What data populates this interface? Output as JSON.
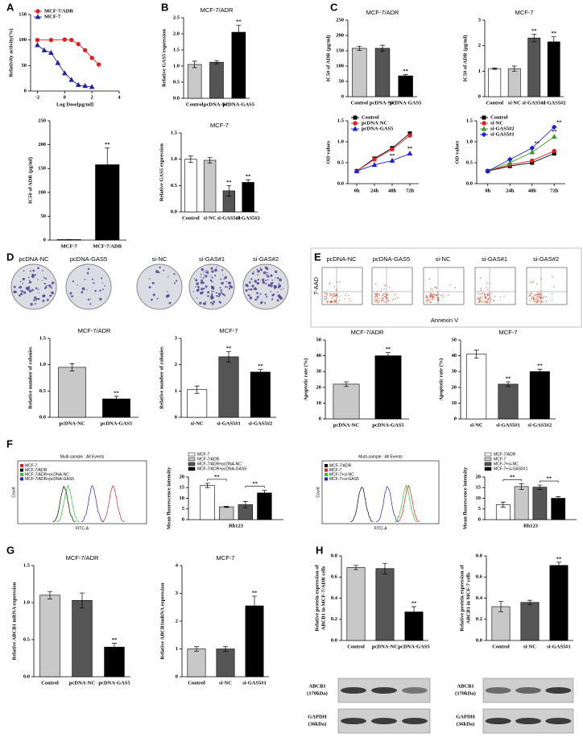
{
  "panel_labels": [
    "A",
    "B",
    "C",
    "D",
    "E",
    "F",
    "G",
    "H"
  ],
  "colony_images": {
    "labels": [
      "pcDNA-NC",
      "pcDNA-GAS5",
      "si-NC",
      "si-GAS#1",
      "si-GAS#2"
    ]
  },
  "flow_images": {
    "labels": [
      "pcDNA-NC",
      "pcDNA-GAS5",
      "si-NC",
      "si-GAS#1",
      "si-GAS#2"
    ],
    "y_label": "7-AAD",
    "x_label": "Annexin V"
  },
  "histograms": [
    {
      "title": "Multi-sample : All Events",
      "x_label": "FITC-A",
      "y_label": "Count",
      "legend": [
        {
          "name": "MCF-7",
          "color": "#e02020"
        },
        {
          "name": "MCF-7/ADR",
          "color": "#000000"
        },
        {
          "name": "MCF-7/ADR+pcDNA-NC",
          "color": "#22cc22"
        },
        {
          "name": "MCF-7/ADR+pcDNA-GAS5",
          "color": "#2020d0"
        }
      ]
    },
    {
      "title": "Multi-sample : All Events",
      "x_label": "FITC-A",
      "y_label": "Count",
      "legend": [
        {
          "name": "MCF-7/ADR",
          "color": "#000000"
        },
        {
          "name": "MCF-7",
          "color": "#e02020"
        },
        {
          "name": "MCF-7+si-NC",
          "color": "#22cc22"
        },
        {
          "name": "MCF-7+si-GAS5",
          "color": "#2020d0"
        }
      ]
    }
  ],
  "blots": [
    {
      "rows": [
        {
          "protein": "ABCB1",
          "size": "(170kDa)"
        },
        {
          "protein": "GAPDH",
          "size": "(36kDa)"
        }
      ]
    },
    {
      "rows": [
        {
          "protein": "ABCB1",
          "size": "(170kDa)"
        },
        {
          "protein": "GAPDH",
          "size": "(36kDa)"
        }
      ]
    }
  ],
  "chart_data": [
    {
      "type": "line",
      "x_label": "Log Dose[μg/ml]",
      "y_label": "Relativity activity(%)",
      "xlim": [
        -2.5,
        4
      ],
      "xticks": [
        -2,
        0,
        2,
        4
      ],
      "ylim": [
        0,
        150
      ],
      "yticks": [
        0,
        50,
        100,
        150
      ],
      "legend": "upper left",
      "series": [
        {
          "name": "MCF-7/ADR",
          "color": "#e02020",
          "marker": "circle",
          "x": [
            -2,
            -1,
            0,
            0.5,
            1,
            1.5,
            2,
            2.5
          ],
          "values": [
            100,
            100,
            101,
            100,
            92,
            80,
            65,
            52
          ]
        },
        {
          "name": "MCF-7",
          "color": "#2020a0",
          "marker": "triangle",
          "x": [
            -2,
            -1.5,
            -1,
            -0.5,
            0,
            0.5,
            1,
            1.5,
            2
          ],
          "values": [
            90,
            80,
            75,
            55,
            35,
            22,
            12,
            10,
            8
          ]
        }
      ]
    },
    {
      "type": "bar",
      "y_label": "IC50 of ADR (μg/ml)",
      "categories": [
        "MCF-7",
        "MCF-7/ADR"
      ],
      "values": [
        1,
        158
      ],
      "errors": [
        0.3,
        35
      ],
      "significance": [
        null,
        "**"
      ],
      "colors": [
        "#ffffff",
        "#000000"
      ],
      "ylim": [
        0,
        250
      ],
      "yticks": [
        0,
        50,
        100,
        150,
        200,
        250
      ]
    },
    {
      "type": "bar",
      "title": "MCF-7/ADR",
      "y_label": "Relative GAS5 expression",
      "categories": [
        "Control",
        "pcDNA-NC",
        "pcDNA-GAS5"
      ],
      "values": [
        1.05,
        1.12,
        2.05
      ],
      "errors": [
        0.1,
        0.05,
        0.22
      ],
      "significance": [
        null,
        null,
        "**"
      ],
      "colors": [
        "#c8c8c8",
        "#555555",
        "#000000"
      ],
      "ylim": [
        0,
        2.5
      ],
      "yticks": [
        {
          "value": 0,
          "label": "0.0"
        },
        0.5,
        {
          "value": 1,
          "label": "1.0"
        },
        1.5,
        {
          "value": 2,
          "label": "2.0"
        },
        2.5
      ]
    },
    {
      "type": "bar",
      "title": "MCF-7",
      "y_label": "Relative GAS5 expression",
      "categories": [
        "Control",
        "si-NC",
        "si-GAS5#1",
        "si-GAS5#2"
      ],
      "values": [
        1.0,
        0.98,
        0.4,
        0.56
      ],
      "errors": [
        0.06,
        0.05,
        0.1,
        0.05
      ],
      "significance": [
        null,
        null,
        "**",
        "**"
      ],
      "colors": [
        "#ffffff",
        "#c8c8c8",
        "#555555",
        "#000000"
      ],
      "ylim": [
        0,
        1.5
      ],
      "yticks": [
        {
          "value": 0,
          "label": "0.0"
        },
        0.5,
        {
          "value": 1,
          "label": "1.0"
        },
        1.5
      ]
    },
    {
      "type": "bar",
      "title": "MCF-7/ADR",
      "y_label": "IC50 of ADR (μg/ml)",
      "categories": [
        "Control",
        "pcDNA-NC",
        "pcDNA-GAS5"
      ],
      "values": [
        158,
        158,
        68
      ],
      "errors": [
        7,
        10,
        4
      ],
      "significance": [
        null,
        null,
        "**"
      ],
      "colors": [
        "#c8c8c8",
        "#555555",
        "#000000"
      ],
      "ylim": [
        0,
        250
      ],
      "yticks": [
        0,
        50,
        100,
        150,
        200,
        250
      ]
    },
    {
      "type": "bar",
      "title": "MCF-7",
      "y_label": "IC50 of ADR (μg/ml)",
      "categories": [
        "Control",
        "si-NC",
        "si-GAS5#1",
        "si-GAS5#2"
      ],
      "values": [
        1.1,
        1.1,
        2.3,
        2.15
      ],
      "errors": [
        0.03,
        0.1,
        0.15,
        0.2
      ],
      "significance": [
        null,
        null,
        "**",
        "**"
      ],
      "colors": [
        "#ffffff",
        "#c8c8c8",
        "#555555",
        "#000000"
      ],
      "ylim": [
        0,
        3
      ],
      "yticks": [
        0,
        1,
        2,
        3
      ]
    },
    {
      "type": "line",
      "y_label": "OD values",
      "categories": [
        "0h",
        "24h",
        "48h",
        "72h"
      ],
      "ylim": [
        0,
        1.5
      ],
      "yticks": [
        {
          "value": 0,
          "label": "0.0"
        },
        0.5,
        {
          "value": 1,
          "label": "1.0"
        },
        1.5
      ],
      "legend": "upper left",
      "series": [
        {
          "name": "Control",
          "color": "#000000",
          "marker": "square",
          "values": [
            0.3,
            0.6,
            0.85,
            1.2
          ],
          "significance": [
            null,
            null,
            null,
            null
          ]
        },
        {
          "name": "pcDNA-NC",
          "color": "#e02020",
          "marker": "circle",
          "values": [
            0.3,
            0.58,
            0.82,
            1.15
          ],
          "significance": [
            null,
            null,
            null,
            null
          ]
        },
        {
          "name": "pcDNA-GAS5",
          "color": "#2020d0",
          "marker": "triangle",
          "values": [
            0.3,
            0.45,
            0.55,
            0.72
          ],
          "significance": [
            null,
            null,
            "**",
            "**"
          ]
        }
      ]
    },
    {
      "type": "line",
      "y_label": "OD values",
      "categories": [
        "0h",
        "24h",
        "48h",
        "72h"
      ],
      "ylim": [
        0,
        1.5
      ],
      "yticks": [
        {
          "value": 0,
          "label": "0.0"
        },
        0.5,
        {
          "value": 1,
          "label": "1.0"
        },
        1.5
      ],
      "legend": "upper left",
      "series": [
        {
          "name": "Control",
          "color": "#000000",
          "marker": "square",
          "values": [
            0.3,
            0.42,
            0.5,
            0.72
          ],
          "significance": [
            null,
            null,
            null,
            null
          ]
        },
        {
          "name": "si-NC",
          "color": "#e02020",
          "marker": "circle",
          "values": [
            0.3,
            0.45,
            0.55,
            0.78
          ],
          "significance": [
            null,
            null,
            null,
            null
          ]
        },
        {
          "name": "si-GAS5#2",
          "color": "#3a9a2a",
          "marker": "triangle",
          "values": [
            0.3,
            0.5,
            0.75,
            1.12
          ],
          "significance": [
            null,
            null,
            null,
            "**"
          ]
        },
        {
          "name": "si-GAS5#1",
          "color": "#2020d0",
          "marker": "diamond",
          "values": [
            0.3,
            0.58,
            0.85,
            1.35
          ],
          "significance": [
            null,
            null,
            "**",
            "**"
          ]
        }
      ]
    },
    {
      "type": "bar",
      "title": "MCF-7/ADR",
      "y_label": "Relative number of colonies",
      "categories": [
        "pcDNA-NC",
        "pcDNA-GAS5"
      ],
      "values": [
        0.95,
        0.35
      ],
      "errors": [
        0.07,
        0.05
      ],
      "significance": [
        null,
        "**"
      ],
      "colors": [
        "#c8c8c8",
        "#000000"
      ],
      "ylim": [
        0,
        1.5
      ],
      "yticks": [
        {
          "value": 0,
          "label": "0.0"
        },
        0.5,
        {
          "value": 1,
          "label": "1.0"
        },
        1.5
      ]
    },
    {
      "type": "bar",
      "title": "MCF-7",
      "y_label": "Relative number of colonies",
      "categories": [
        "si-NC",
        "si-GAS5#1",
        "si-GAS5#2"
      ],
      "values": [
        1.05,
        2.3,
        1.72
      ],
      "errors": [
        0.14,
        0.2,
        0.1
      ],
      "significance": [
        null,
        "**",
        "**"
      ],
      "colors": [
        "#ffffff",
        "#555555",
        "#000000"
      ],
      "ylim": [
        0,
        3
      ],
      "yticks": [
        0,
        1,
        2,
        3
      ]
    },
    {
      "type": "bar",
      "title": "MCF-7/ADR",
      "y_label": "Apoptotic rate (%)",
      "categories": [
        "pcDNA-NC",
        "pcDNA-GAS5"
      ],
      "values": [
        22,
        40
      ],
      "errors": [
        1.5,
        2
      ],
      "significance": [
        null,
        "**"
      ],
      "colors": [
        "#c8c8c8",
        "#000000"
      ],
      "ylim": [
        0,
        50
      ],
      "yticks": [
        0,
        10,
        20,
        30,
        40,
        50
      ]
    },
    {
      "type": "bar",
      "title": "MCF-7",
      "y_label": "Apoptotic rate (%)",
      "categories": [
        "si-NC",
        "si-GAS5#1",
        "si-GAS5#2"
      ],
      "values": [
        41,
        22,
        30
      ],
      "errors": [
        2.5,
        1.5,
        1.5
      ],
      "significance": [
        null,
        "**",
        "**"
      ],
      "colors": [
        "#ffffff",
        "#555555",
        "#000000"
      ],
      "ylim": [
        0,
        50
      ],
      "yticks": [
        0,
        10,
        20,
        30,
        40,
        50
      ]
    },
    {
      "type": "bar",
      "y_label": "Mean fluorescence intensity",
      "categories": [
        "Rh123"
      ],
      "brackets": [
        "**",
        "**"
      ],
      "ylim": [
        0,
        20
      ],
      "yticks": [
        0,
        5,
        10,
        15,
        20
      ],
      "series": [
        {
          "name": "MCF-7",
          "color": "#ffffff",
          "values": [
            16
          ],
          "errors": [
            1
          ]
        },
        {
          "name": "MCF-7/ADR",
          "color": "#c8c8c8",
          "values": [
            6
          ],
          "errors": [
            0.3
          ]
        },
        {
          "name": "MCF-7/ADR+pcDNA-NC",
          "color": "#555555",
          "values": [
            7
          ],
          "errors": [
            1.5
          ]
        },
        {
          "name": "MCF-7/ADR+pcDNA-GAS5",
          "color": "#000000",
          "values": [
            12.5
          ],
          "errors": [
            1.2
          ]
        }
      ]
    },
    {
      "type": "bar",
      "y_label": "Mean fluorescence intensity",
      "categories": [
        "Rh123"
      ],
      "brackets": [
        "**",
        "**"
      ],
      "ylim": [
        0,
        20
      ],
      "yticks": [
        0,
        5,
        10,
        15,
        20
      ],
      "series": [
        {
          "name": "MCF-7/ADR",
          "color": "#ffffff",
          "values": [
            7
          ],
          "errors": [
            1.2
          ]
        },
        {
          "name": "MCF-7",
          "color": "#c8c8c8",
          "values": [
            15.5
          ],
          "errors": [
            1.3
          ]
        },
        {
          "name": "MCF-7+si-NC",
          "color": "#555555",
          "values": [
            15.2
          ],
          "errors": [
            1
          ]
        },
        {
          "name": "MCF-7+si-GAS5#1",
          "color": "#000000",
          "values": [
            10
          ],
          "errors": [
            0.8
          ]
        }
      ]
    },
    {
      "type": "bar",
      "title": "MCF-7/ADR",
      "y_label": "Relative ABCB1 mRNA expression",
      "categories": [
        "Control",
        "pcDNA-NC",
        "pcDNA-GAS5"
      ],
      "values": [
        1.1,
        1.03,
        0.4
      ],
      "errors": [
        0.05,
        0.1,
        0.05
      ],
      "significance": [
        null,
        null,
        "**"
      ],
      "colors": [
        "#c8c8c8",
        "#555555",
        "#000000"
      ],
      "ylim": [
        0,
        1.5
      ],
      "yticks": [
        {
          "value": 0,
          "label": "0.0"
        },
        0.5,
        {
          "value": 1,
          "label": "1.0"
        },
        1.5
      ]
    },
    {
      "type": "bar",
      "title": "MCF-7",
      "y_label": "Relative ABCB1mRNA expression",
      "categories": [
        "Control",
        "si-NC",
        "si-GAS5#1"
      ],
      "values": [
        1.0,
        1.0,
        2.55
      ],
      "errors": [
        0.08,
        0.08,
        0.35
      ],
      "significance": [
        null,
        null,
        "**"
      ],
      "colors": [
        "#c8c8c8",
        "#555555",
        "#000000"
      ],
      "ylim": [
        0,
        4
      ],
      "yticks": [
        0,
        1,
        2,
        3,
        4
      ]
    },
    {
      "type": "bar",
      "y_label": [
        "Relative protein expression of",
        "ABCB1 in MCF-7/ADR cells"
      ],
      "categories": [
        "Control",
        "pcDNA-NC",
        "pcDNA-GAS5"
      ],
      "values": [
        0.69,
        0.68,
        0.27
      ],
      "errors": [
        0.02,
        0.05,
        0.05
      ],
      "significance": [
        null,
        null,
        "**"
      ],
      "colors": [
        "#c8c8c8",
        "#555555",
        "#000000"
      ],
      "ylim": [
        0,
        0.8
      ],
      "yticks": [
        {
          "value": 0,
          "label": "0.0"
        },
        0.2,
        0.4,
        0.6,
        0.8
      ]
    },
    {
      "type": "bar",
      "y_label": [
        "Relative protein expression of",
        "ABCB1 in MCF-7 cells"
      ],
      "categories": [
        "Control",
        "si-NC",
        "si-GAS5#1"
      ],
      "values": [
        0.32,
        0.36,
        0.71
      ],
      "errors": [
        0.05,
        0.02,
        0.03
      ],
      "significance": [
        null,
        null,
        "**"
      ],
      "colors": [
        "#c8c8c8",
        "#555555",
        "#000000"
      ],
      "ylim": [
        0,
        0.8
      ],
      "yticks": [
        {
          "value": 0,
          "label": "0.0"
        },
        0.2,
        0.4,
        0.6,
        0.8
      ]
    }
  ]
}
